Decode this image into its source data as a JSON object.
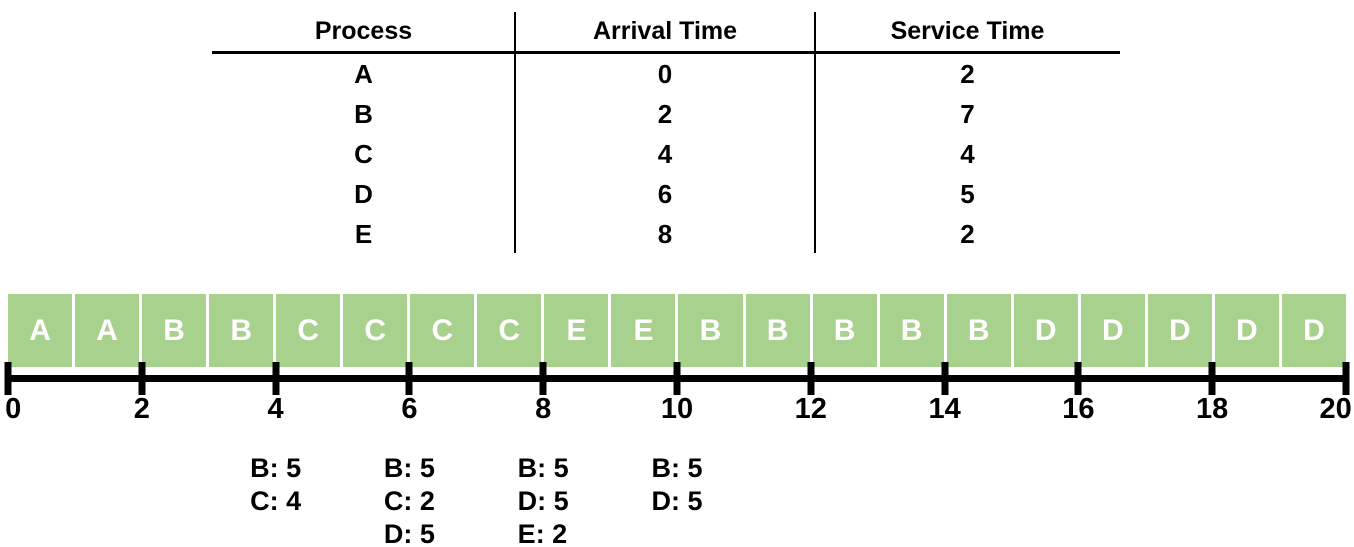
{
  "table": {
    "headers": [
      "Process",
      "Arrival Time",
      "Service Time"
    ],
    "rows": [
      {
        "process": "A",
        "arrival_time": "0",
        "service_time": "2"
      },
      {
        "process": "B",
        "arrival_time": "2",
        "service_time": "7"
      },
      {
        "process": "C",
        "arrival_time": "4",
        "service_time": "4"
      },
      {
        "process": "D",
        "arrival_time": "6",
        "service_time": "5"
      },
      {
        "process": "E",
        "arrival_time": "8",
        "service_time": "2"
      }
    ]
  },
  "chart_data": {
    "type": "gantt",
    "title": "",
    "timeline_slots": [
      "A",
      "A",
      "B",
      "B",
      "C",
      "C",
      "C",
      "C",
      "E",
      "E",
      "B",
      "B",
      "B",
      "B",
      "B",
      "D",
      "D",
      "D",
      "D",
      "D"
    ],
    "axis": {
      "min": 0,
      "max": 20,
      "tick_values": [
        0,
        2,
        4,
        6,
        8,
        10,
        12,
        14,
        16,
        18,
        20
      ]
    },
    "queue_annotations": [
      {
        "time": 4,
        "entries": [
          "B: 5",
          "C: 4"
        ]
      },
      {
        "time": 6,
        "entries": [
          "B: 5",
          "C: 2",
          "D: 5"
        ]
      },
      {
        "time": 8,
        "entries": [
          "B: 5",
          "D: 5",
          "E: 2"
        ]
      },
      {
        "time": 10,
        "entries": [
          "B: 5",
          "D: 5"
        ]
      }
    ]
  },
  "colors": {
    "block_fill": "#a9d18e",
    "block_label": "#ffffff",
    "axis": "#000000",
    "text": "#000000"
  }
}
